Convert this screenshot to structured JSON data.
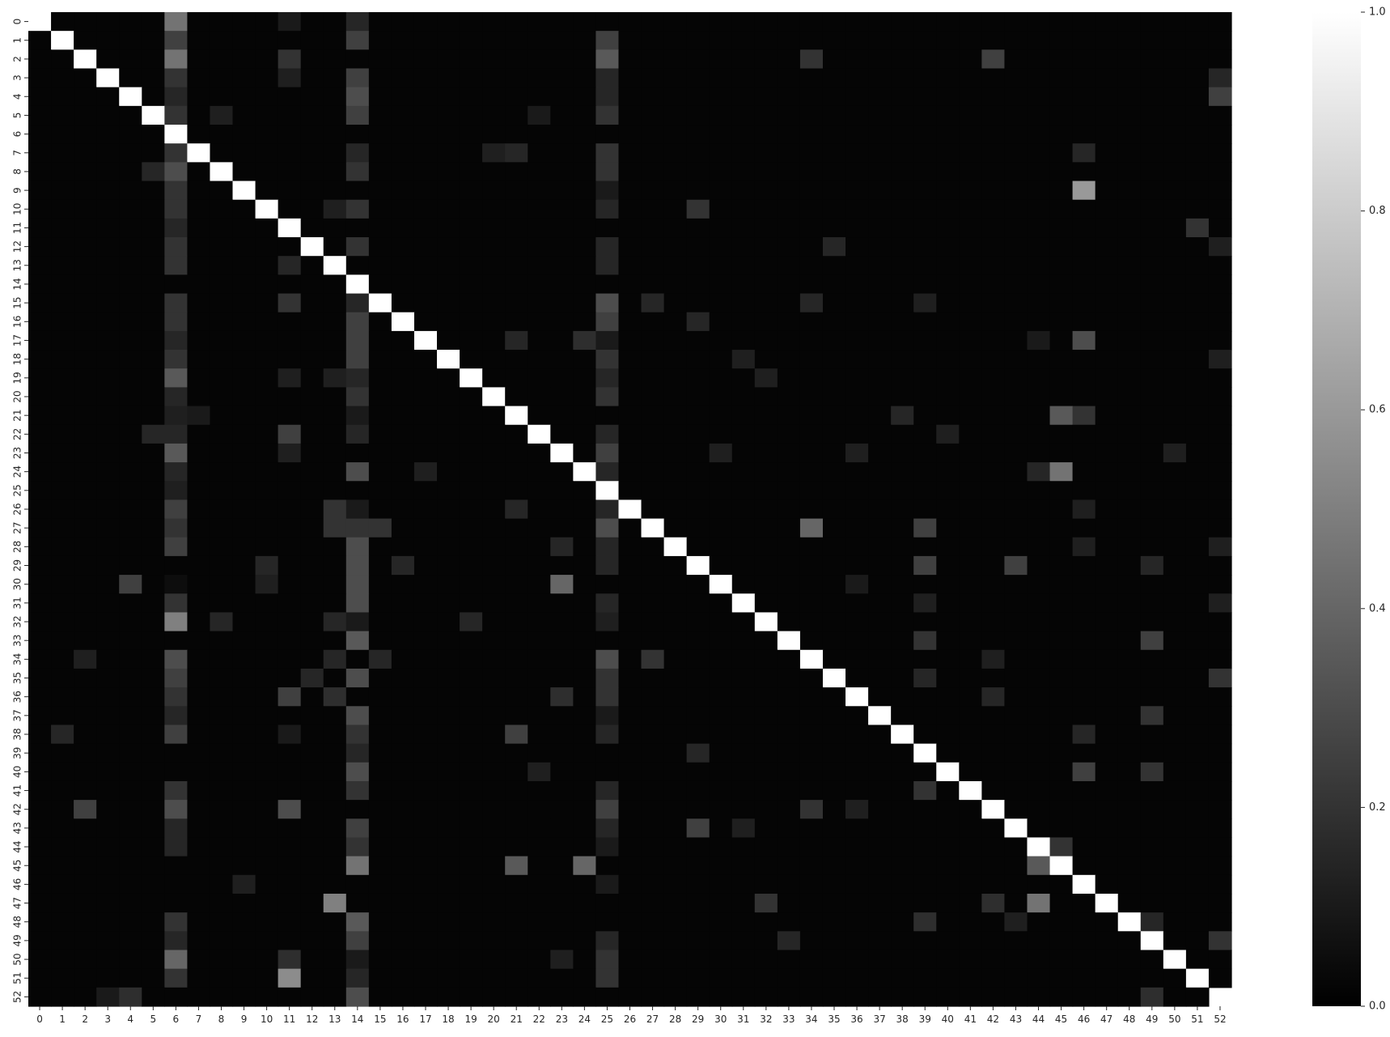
{
  "chart_data": {
    "type": "heatmap",
    "title": "",
    "xlabel": "",
    "ylabel": "",
    "n": 53,
    "categories": [
      "0",
      "1",
      "2",
      "3",
      "4",
      "5",
      "6",
      "7",
      "8",
      "9",
      "10",
      "11",
      "12",
      "13",
      "14",
      "15",
      "16",
      "17",
      "18",
      "19",
      "20",
      "21",
      "22",
      "23",
      "24",
      "25",
      "26",
      "27",
      "28",
      "29",
      "30",
      "31",
      "32",
      "33",
      "34",
      "35",
      "36",
      "37",
      "38",
      "39",
      "40",
      "41",
      "42",
      "43",
      "44",
      "45",
      "46",
      "47",
      "48",
      "49",
      "50",
      "51",
      "52"
    ],
    "colormap": [
      "#000000",
      "#ffffff"
    ],
    "vmin": 0.0,
    "vmax": 1.0,
    "colorbar_ticks": [
      "0.0",
      "0.2",
      "0.4",
      "0.6",
      "0.8",
      "1.0"
    ],
    "colorbar_tick_values": [
      0.0,
      0.2,
      0.4,
      0.6,
      0.8,
      1.0
    ],
    "diagonal_value": 1.0,
    "background_value": 0.02,
    "highlight_cells": [
      [
        0,
        6,
        0.45
      ],
      [
        1,
        6,
        0.25
      ],
      [
        2,
        6,
        0.45
      ],
      [
        3,
        6,
        0.2
      ],
      [
        4,
        6,
        0.15
      ],
      [
        5,
        6,
        0.2
      ],
      [
        7,
        6,
        0.2
      ],
      [
        8,
        6,
        0.3
      ],
      [
        9,
        6,
        0.2
      ],
      [
        10,
        6,
        0.2
      ],
      [
        11,
        6,
        0.15
      ],
      [
        12,
        6,
        0.2
      ],
      [
        13,
        6,
        0.2
      ],
      [
        15,
        6,
        0.2
      ],
      [
        16,
        6,
        0.2
      ],
      [
        17,
        6,
        0.15
      ],
      [
        18,
        6,
        0.2
      ],
      [
        19,
        6,
        0.35
      ],
      [
        20,
        6,
        0.15
      ],
      [
        21,
        6,
        0.12
      ],
      [
        22,
        6,
        0.15
      ],
      [
        23,
        6,
        0.35
      ],
      [
        24,
        6,
        0.15
      ],
      [
        25,
        6,
        0.12
      ],
      [
        26,
        6,
        0.25
      ],
      [
        27,
        6,
        0.2
      ],
      [
        28,
        6,
        0.25
      ],
      [
        30,
        6,
        0.05
      ],
      [
        31,
        6,
        0.2
      ],
      [
        32,
        6,
        0.5
      ],
      [
        34,
        6,
        0.3
      ],
      [
        35,
        6,
        0.25
      ],
      [
        36,
        6,
        0.2
      ],
      [
        37,
        6,
        0.15
      ],
      [
        38,
        6,
        0.25
      ],
      [
        41,
        6,
        0.2
      ],
      [
        42,
        6,
        0.3
      ],
      [
        43,
        6,
        0.15
      ],
      [
        44,
        6,
        0.15
      ],
      [
        48,
        6,
        0.2
      ],
      [
        49,
        6,
        0.15
      ],
      [
        50,
        6,
        0.4
      ],
      [
        51,
        6,
        0.2
      ],
      [
        0,
        14,
        0.15
      ],
      [
        1,
        14,
        0.25
      ],
      [
        3,
        14,
        0.25
      ],
      [
        4,
        14,
        0.3
      ],
      [
        5,
        14,
        0.25
      ],
      [
        7,
        14,
        0.15
      ],
      [
        8,
        14,
        0.2
      ],
      [
        10,
        14,
        0.2
      ],
      [
        12,
        14,
        0.2
      ],
      [
        15,
        14,
        0.15
      ],
      [
        16,
        14,
        0.25
      ],
      [
        17,
        14,
        0.25
      ],
      [
        18,
        14,
        0.25
      ],
      [
        19,
        14,
        0.15
      ],
      [
        20,
        14,
        0.2
      ],
      [
        21,
        14,
        0.1
      ],
      [
        22,
        14,
        0.15
      ],
      [
        24,
        14,
        0.3
      ],
      [
        26,
        14,
        0.1
      ],
      [
        27,
        14,
        0.2
      ],
      [
        28,
        14,
        0.3
      ],
      [
        29,
        14,
        0.3
      ],
      [
        30,
        14,
        0.3
      ],
      [
        31,
        14,
        0.3
      ],
      [
        32,
        14,
        0.1
      ],
      [
        33,
        14,
        0.35
      ],
      [
        35,
        14,
        0.3
      ],
      [
        37,
        14,
        0.3
      ],
      [
        38,
        14,
        0.2
      ],
      [
        39,
        14,
        0.15
      ],
      [
        40,
        14,
        0.3
      ],
      [
        41,
        14,
        0.2
      ],
      [
        43,
        14,
        0.25
      ],
      [
        44,
        14,
        0.2
      ],
      [
        45,
        14,
        0.45
      ],
      [
        48,
        14,
        0.35
      ],
      [
        49,
        14,
        0.25
      ],
      [
        50,
        14,
        0.1
      ],
      [
        51,
        14,
        0.15
      ],
      [
        52,
        14,
        0.3
      ],
      [
        1,
        25,
        0.25
      ],
      [
        2,
        25,
        0.35
      ],
      [
        3,
        25,
        0.15
      ],
      [
        4,
        25,
        0.15
      ],
      [
        5,
        25,
        0.2
      ],
      [
        7,
        25,
        0.2
      ],
      [
        8,
        25,
        0.2
      ],
      [
        9,
        25,
        0.1
      ],
      [
        10,
        25,
        0.15
      ],
      [
        12,
        25,
        0.15
      ],
      [
        13,
        25,
        0.15
      ],
      [
        15,
        25,
        0.3
      ],
      [
        16,
        25,
        0.25
      ],
      [
        17,
        25,
        0.1
      ],
      [
        18,
        25,
        0.2
      ],
      [
        19,
        25,
        0.15
      ],
      [
        20,
        25,
        0.2
      ],
      [
        22,
        25,
        0.15
      ],
      [
        23,
        25,
        0.25
      ],
      [
        24,
        25,
        0.15
      ],
      [
        26,
        25,
        0.15
      ],
      [
        27,
        25,
        0.3
      ],
      [
        28,
        25,
        0.15
      ],
      [
        29,
        25,
        0.15
      ],
      [
        31,
        25,
        0.15
      ],
      [
        32,
        25,
        0.12
      ],
      [
        34,
        25,
        0.3
      ],
      [
        35,
        25,
        0.2
      ],
      [
        36,
        25,
        0.2
      ],
      [
        37,
        25,
        0.1
      ],
      [
        38,
        25,
        0.15
      ],
      [
        41,
        25,
        0.15
      ],
      [
        42,
        25,
        0.25
      ],
      [
        43,
        25,
        0.15
      ],
      [
        44,
        25,
        0.1
      ],
      [
        46,
        25,
        0.1
      ],
      [
        49,
        25,
        0.15
      ],
      [
        50,
        25,
        0.2
      ],
      [
        51,
        25,
        0.2
      ],
      [
        0,
        11,
        0.1
      ],
      [
        2,
        11,
        0.2
      ],
      [
        3,
        11,
        0.12
      ],
      [
        13,
        11,
        0.15
      ],
      [
        15,
        11,
        0.2
      ],
      [
        19,
        11,
        0.12
      ],
      [
        22,
        11,
        0.25
      ],
      [
        23,
        11,
        0.12
      ],
      [
        36,
        11,
        0.25
      ],
      [
        38,
        11,
        0.1
      ],
      [
        42,
        11,
        0.3
      ],
      [
        50,
        11,
        0.2
      ],
      [
        51,
        11,
        0.55
      ],
      [
        2,
        34,
        0.2
      ],
      [
        2,
        42,
        0.25
      ],
      [
        42,
        2,
        0.25
      ],
      [
        34,
        2,
        0.12
      ],
      [
        4,
        52,
        0.25
      ],
      [
        3,
        52,
        0.15
      ],
      [
        12,
        52,
        0.12
      ],
      [
        18,
        52,
        0.12
      ],
      [
        35,
        52,
        0.18
      ],
      [
        49,
        52,
        0.25
      ],
      [
        52,
        4,
        0.18
      ],
      [
        52,
        3,
        0.1
      ],
      [
        52,
        49,
        0.18
      ],
      [
        5,
        8,
        0.12
      ],
      [
        5,
        22,
        0.1
      ],
      [
        8,
        5,
        0.15
      ],
      [
        7,
        20,
        0.12
      ],
      [
        7,
        21,
        0.15
      ],
      [
        7,
        46,
        0.15
      ],
      [
        9,
        46,
        0.6
      ],
      [
        46,
        9,
        0.12
      ],
      [
        10,
        29,
        0.2
      ],
      [
        10,
        13,
        0.12
      ],
      [
        11,
        51,
        0.2
      ],
      [
        12,
        35,
        0.15
      ],
      [
        13,
        11,
        0.15
      ],
      [
        15,
        11,
        0.2
      ],
      [
        15,
        27,
        0.15
      ],
      [
        15,
        34,
        0.15
      ],
      [
        15,
        39,
        0.12
      ],
      [
        16,
        29,
        0.15
      ],
      [
        17,
        21,
        0.15
      ],
      [
        17,
        24,
        0.18
      ],
      [
        17,
        46,
        0.3
      ],
      [
        17,
        44,
        0.1
      ],
      [
        18,
        31,
        0.12
      ],
      [
        19,
        13,
        0.12
      ],
      [
        19,
        32,
        0.12
      ],
      [
        21,
        38,
        0.15
      ],
      [
        21,
        45,
        0.35
      ],
      [
        21,
        46,
        0.2
      ],
      [
        21,
        7,
        0.1
      ],
      [
        22,
        5,
        0.15
      ],
      [
        22,
        40,
        0.12
      ],
      [
        23,
        30,
        0.12
      ],
      [
        23,
        36,
        0.12
      ],
      [
        23,
        50,
        0.12
      ],
      [
        24,
        17,
        0.12
      ],
      [
        24,
        44,
        0.15
      ],
      [
        24,
        45,
        0.45
      ],
      [
        26,
        13,
        0.2
      ],
      [
        26,
        21,
        0.15
      ],
      [
        26,
        46,
        0.12
      ],
      [
        27,
        13,
        0.2
      ],
      [
        27,
        15,
        0.2
      ],
      [
        27,
        34,
        0.4
      ],
      [
        27,
        39,
        0.25
      ],
      [
        28,
        23,
        0.15
      ],
      [
        28,
        46,
        0.12
      ],
      [
        28,
        52,
        0.12
      ],
      [
        29,
        10,
        0.15
      ],
      [
        29,
        16,
        0.15
      ],
      [
        29,
        39,
        0.25
      ],
      [
        29,
        43,
        0.25
      ],
      [
        29,
        49,
        0.15
      ],
      [
        30,
        4,
        0.25
      ],
      [
        30,
        10,
        0.12
      ],
      [
        30,
        23,
        0.4
      ],
      [
        30,
        36,
        0.1
      ],
      [
        31,
        39,
        0.12
      ],
      [
        31,
        52,
        0.12
      ],
      [
        32,
        8,
        0.15
      ],
      [
        32,
        13,
        0.15
      ],
      [
        32,
        19,
        0.15
      ],
      [
        33,
        39,
        0.2
      ],
      [
        33,
        49,
        0.25
      ],
      [
        34,
        27,
        0.2
      ],
      [
        34,
        13,
        0.15
      ],
      [
        34,
        15,
        0.15
      ],
      [
        34,
        42,
        0.12
      ],
      [
        35,
        12,
        0.15
      ],
      [
        35,
        39,
        0.15
      ],
      [
        35,
        52,
        0.2
      ],
      [
        36,
        13,
        0.18
      ],
      [
        36,
        23,
        0.18
      ],
      [
        36,
        42,
        0.15
      ],
      [
        37,
        49,
        0.2
      ],
      [
        38,
        1,
        0.15
      ],
      [
        38,
        21,
        0.25
      ],
      [
        38,
        46,
        0.15
      ],
      [
        39,
        29,
        0.15
      ],
      [
        40,
        22,
        0.12
      ],
      [
        40,
        46,
        0.25
      ],
      [
        40,
        49,
        0.2
      ],
      [
        41,
        39,
        0.2
      ],
      [
        42,
        34,
        0.2
      ],
      [
        42,
        36,
        0.12
      ],
      [
        43,
        29,
        0.25
      ],
      [
        43,
        31,
        0.12
      ],
      [
        44,
        45,
        0.2
      ],
      [
        45,
        21,
        0.35
      ],
      [
        45,
        24,
        0.4
      ],
      [
        45,
        44,
        0.35
      ],
      [
        46,
        9,
        0.12
      ],
      [
        47,
        13,
        0.5
      ],
      [
        47,
        32,
        0.2
      ],
      [
        47,
        42,
        0.18
      ],
      [
        47,
        44,
        0.45
      ],
      [
        48,
        39,
        0.18
      ],
      [
        48,
        43,
        0.12
      ],
      [
        48,
        49,
        0.15
      ],
      [
        49,
        33,
        0.15
      ],
      [
        49,
        52,
        0.2
      ],
      [
        50,
        11,
        0.18
      ],
      [
        50,
        23,
        0.12
      ]
    ]
  }
}
